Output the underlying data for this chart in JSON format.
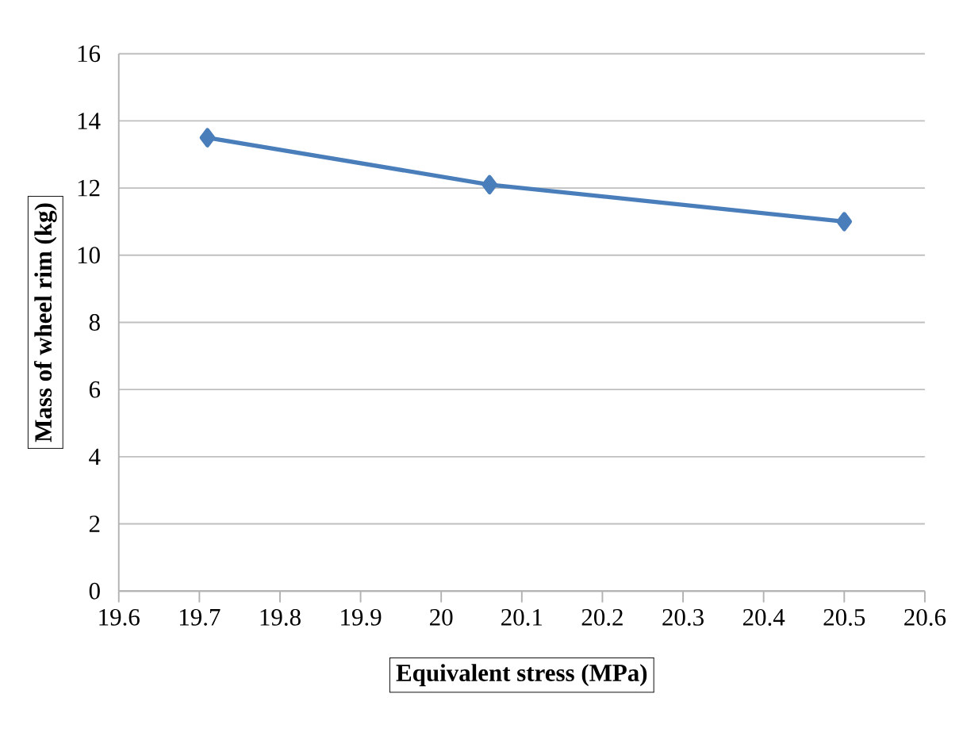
{
  "chart_data": {
    "type": "line",
    "xlabel": "Equivalent stress (MPa)",
    "ylabel": "Mass of wheel rim (kg)",
    "x": [
      19.71,
      20.06,
      20.5
    ],
    "series": [
      {
        "color": "#4a7ebb",
        "values": [
          13.5,
          12.1,
          11.0
        ]
      }
    ],
    "xlim": [
      19.6,
      20.6
    ],
    "xticks": [
      19.6,
      19.7,
      19.8,
      19.9,
      20,
      20.1,
      20.2,
      20.3,
      20.4,
      20.5,
      20.6
    ],
    "ylim": [
      0,
      16
    ],
    "yticks": [
      0,
      2,
      4,
      6,
      8,
      10,
      12,
      14,
      16
    ],
    "grid": "y",
    "marker": "diamond",
    "line_style": "solid"
  }
}
